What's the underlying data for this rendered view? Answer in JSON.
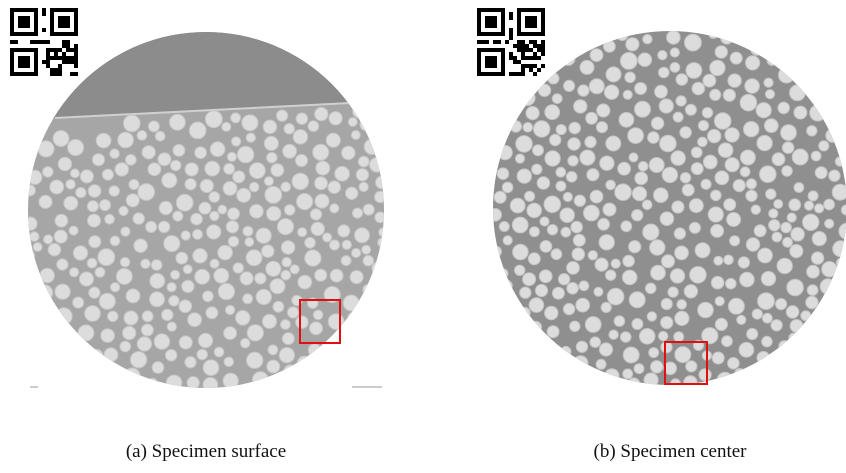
{
  "figure": {
    "panels": [
      {
        "caption": "(a) Specimen surface"
      },
      {
        "caption": "(b) Specimen center"
      }
    ]
  }
}
